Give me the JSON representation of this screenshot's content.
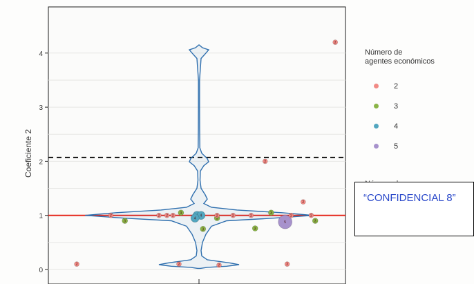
{
  "chart_data": {
    "type": "violin",
    "ylabel": "Coeficiente 2",
    "ylim": [
      -0.1,
      4.35
    ],
    "yticks": [
      0,
      1,
      2,
      3,
      4
    ],
    "grid": true,
    "reference_lines": [
      {
        "y": 1.0,
        "style": "solid",
        "color": "#e5281d"
      },
      {
        "y": 2.07,
        "style": "dashed",
        "color": "#111111"
      }
    ],
    "violin": {
      "color": "#2f6fae",
      "profile": [
        [
          4.15,
          0.3
        ],
        [
          4.1,
          5
        ],
        [
          4.06,
          14
        ],
        [
          4.0,
          10
        ],
        [
          3.9,
          3
        ],
        [
          3.5,
          0.8
        ],
        [
          3.0,
          0.8
        ],
        [
          2.6,
          0.9
        ],
        [
          2.25,
          1.2
        ],
        [
          2.15,
          4
        ],
        [
          2.05,
          12
        ],
        [
          1.99,
          14
        ],
        [
          1.92,
          7
        ],
        [
          1.82,
          2
        ],
        [
          1.65,
          1.5
        ],
        [
          1.5,
          3
        ],
        [
          1.38,
          9
        ],
        [
          1.3,
          12
        ],
        [
          1.22,
          7
        ],
        [
          1.15,
          18
        ],
        [
          1.1,
          55
        ],
        [
          1.05,
          120
        ],
        [
          1.0,
          165
        ],
        [
          0.95,
          110
        ],
        [
          0.9,
          40
        ],
        [
          0.8,
          18
        ],
        [
          0.65,
          10
        ],
        [
          0.5,
          5
        ],
        [
          0.35,
          3
        ],
        [
          0.25,
          4
        ],
        [
          0.18,
          12
        ],
        [
          0.12,
          45
        ],
        [
          0.09,
          58
        ],
        [
          0.06,
          40
        ],
        [
          0.04,
          12
        ],
        [
          0.02,
          2
        ]
      ]
    },
    "legend": {
      "title": "Número de\nagentes económicos",
      "entries": [
        {
          "label": "2",
          "color": "#f18a85"
        },
        {
          "label": "3",
          "color": "#8ab446"
        },
        {
          "label": "4",
          "color": "#52a6bf"
        },
        {
          "label": "5",
          "color": "#a792cc"
        }
      ],
      "second_title": "Número de"
    },
    "points": [
      {
        "x": -0.1,
        "y": 0.1,
        "n": 2
      },
      {
        "x": -0.44,
        "y": 1.0,
        "n": 2
      },
      {
        "x": -0.2,
        "y": 1.0,
        "n": 2
      },
      {
        "x": -0.16,
        "y": 1.0,
        "n": 2
      },
      {
        "x": -0.13,
        "y": 1.0,
        "n": 2
      },
      {
        "x": -0.37,
        "y": 0.9,
        "n": 3
      },
      {
        "x": -0.61,
        "y": 0.1,
        "n": 2
      },
      {
        "x": -0.09,
        "y": 1.05,
        "n": 3
      },
      {
        "x": -0.01,
        "y": 1.0,
        "n": 4
      },
      {
        "x": 0.01,
        "y": 1.0,
        "n": 4
      },
      {
        "x": -0.02,
        "y": 0.95,
        "n": 4
      },
      {
        "x": 0.02,
        "y": 0.75,
        "n": 3
      },
      {
        "x": 0.09,
        "y": 0.95,
        "n": 3
      },
      {
        "x": 0.09,
        "y": 1.0,
        "n": 2
      },
      {
        "x": 0.17,
        "y": 1.0,
        "n": 2
      },
      {
        "x": 0.28,
        "y": 0.76,
        "n": 3
      },
      {
        "x": 0.26,
        "y": 1.0,
        "n": 2
      },
      {
        "x": 0.36,
        "y": 1.05,
        "n": 3
      },
      {
        "x": 0.43,
        "y": 0.88,
        "n": 5
      },
      {
        "x": 0.46,
        "y": 1.0,
        "n": 2
      },
      {
        "x": 0.56,
        "y": 1.0,
        "n": 2
      },
      {
        "x": 0.58,
        "y": 0.9,
        "n": 3
      },
      {
        "x": 0.33,
        "y": 2.0,
        "n": 2
      },
      {
        "x": 0.52,
        "y": 1.25,
        "n": 2
      },
      {
        "x": 0.68,
        "y": 4.2,
        "n": 2
      },
      {
        "x": 0.44,
        "y": 0.1,
        "n": 2
      },
      {
        "x": 0.1,
        "y": 0.08,
        "n": 2
      }
    ]
  },
  "overlay": {
    "text": "“CONFIDENCIAL 8”"
  }
}
